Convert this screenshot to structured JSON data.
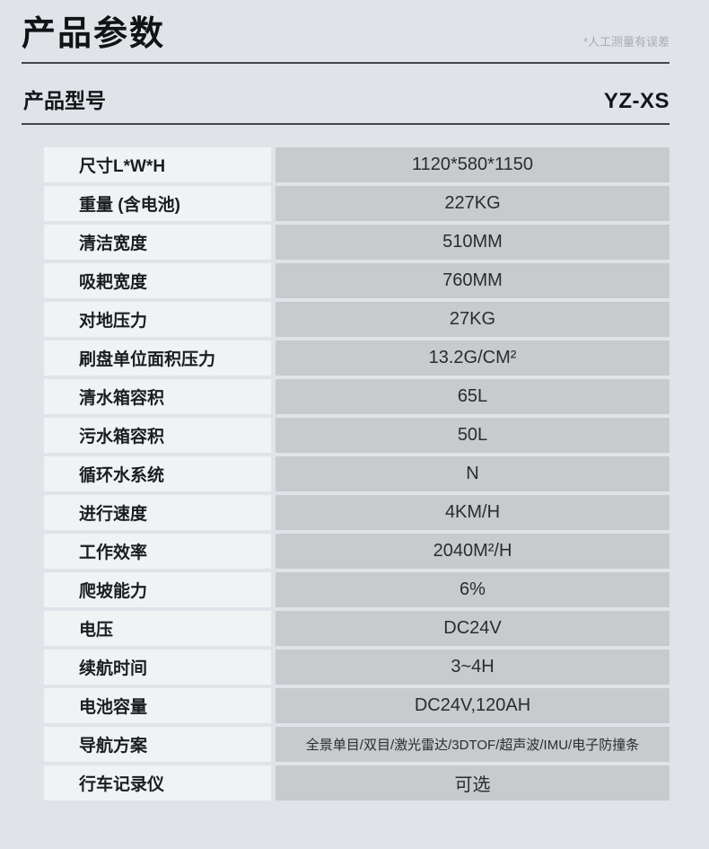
{
  "header": {
    "title": "产品参数",
    "note": "*人工测量有误差",
    "model_label": "产品型号",
    "model_value": "YZ-XS"
  },
  "colors": {
    "background": "#e0e3e8",
    "label_cell": "#f1f2f4",
    "value_cell": "#c8cacd",
    "divider": "#43474c",
    "text": "#1b1d20",
    "note_text": "#a8acb2"
  },
  "table": {
    "rows": [
      {
        "label": "尺寸L*W*H",
        "value": "1120*580*1150"
      },
      {
        "label": "重量 (含电池)",
        "value": "227KG"
      },
      {
        "label": "清洁宽度",
        "value": "510MM"
      },
      {
        "label": "吸耙宽度",
        "value": "760MM"
      },
      {
        "label": "对地压力",
        "value": "27KG"
      },
      {
        "label": "刷盘单位面积压力",
        "value": "13.2G/CM²"
      },
      {
        "label": "清水箱容积",
        "value": "65L"
      },
      {
        "label": "污水箱容积",
        "value": "50L"
      },
      {
        "label": "循环水系统",
        "value": "N"
      },
      {
        "label": "进行速度",
        "value": "4KM/H"
      },
      {
        "label": "工作效率",
        "value": "2040M²/H"
      },
      {
        "label": "爬坡能力",
        "value": "6%"
      },
      {
        "label": "电压",
        "value": "DC24V"
      },
      {
        "label": "续航时间",
        "value": "3~4H"
      },
      {
        "label": "电池容量",
        "value": "DC24V,120AH"
      },
      {
        "label": "导航方案",
        "value": "全景单目/双目/激光雷达/3DTOF/超声波/IMU/电子防撞条"
      },
      {
        "label": "行车记录仪",
        "value": "可选"
      }
    ]
  }
}
